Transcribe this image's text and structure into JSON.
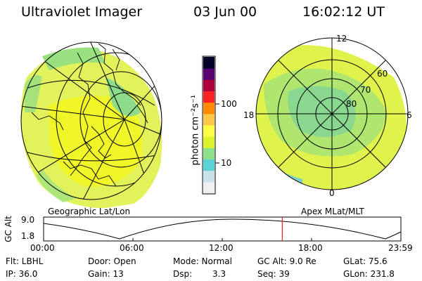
{
  "header": {
    "instrument": "Ultraviolet Imager",
    "date": "03 Jun 00",
    "time": "16:02:12 UT"
  },
  "maps": {
    "geo_label": "Geographic Lat/Lon",
    "apex_label": "Apex MLat/MLT"
  },
  "polar": {
    "mlt_labels": {
      "top": "12",
      "left": "18",
      "right": "6",
      "bottom": "0"
    },
    "lat_labels": [
      "60",
      "70",
      "80"
    ]
  },
  "colorbar": {
    "unit_label": "photon cm⁻²s⁻¹",
    "tick_labels": [
      "100",
      "10"
    ],
    "colors": [
      "#eef0f2",
      "#c8e2ec",
      "#5ad2d6",
      "#8fe08a",
      "#ddf22a",
      "#ffff44",
      "#ffc84a",
      "#ff8c00",
      "#ff2222",
      "#b0003c",
      "#5a0070",
      "#000028"
    ]
  },
  "timeline": {
    "ylabel": "GC Alt",
    "ytick_top": "9.0",
    "ytick_bottom": "1.8",
    "x_ticks": [
      "00:00",
      "06:00",
      "12:00",
      "18:00",
      "23:59"
    ],
    "current_time_fraction": 0.668
  },
  "footer": {
    "flt": "Flt: LBHL",
    "ip": "IP: 36.0",
    "door": "Door: Open",
    "gain": "Gain: 13",
    "mode": "Mode: Normal",
    "dsp_label": "Dsp:",
    "dsp_value": "3.3",
    "gc_alt": "GC Alt: 9.0 Re",
    "seq": "Seq: 39",
    "glat": "GLat: 75.6",
    "glon": "GLon: 231.8"
  }
}
